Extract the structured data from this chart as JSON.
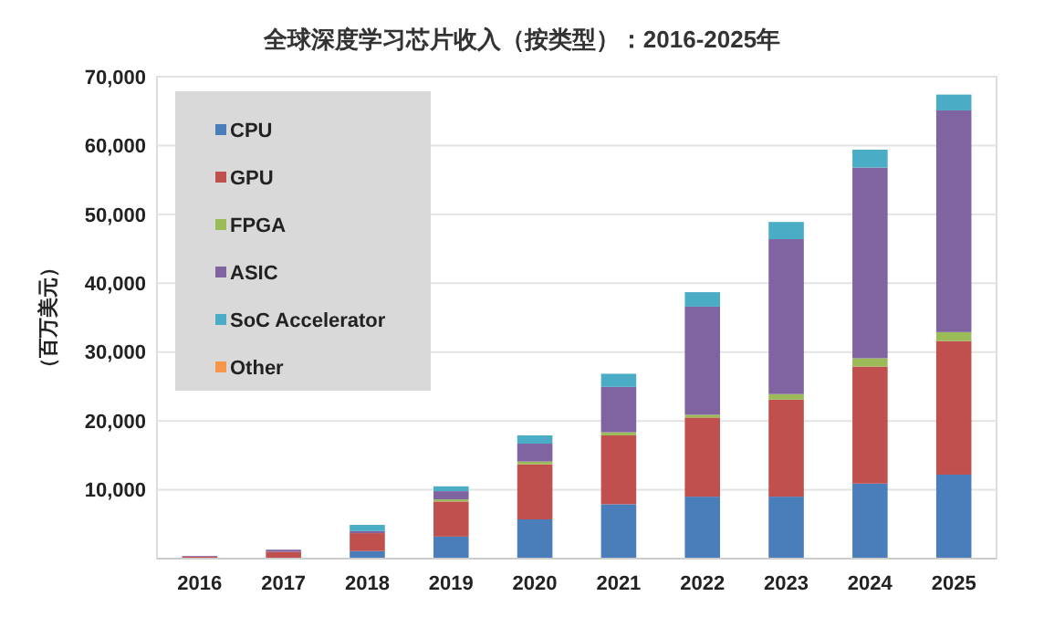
{
  "chart_data": {
    "type": "bar",
    "title": "全球深度学习芯片收入（按类型）：2016-2025年",
    "ylabel": "（百万美元）",
    "categories": [
      "2016",
      "2017",
      "2018",
      "2019",
      "2020",
      "2021",
      "2022",
      "2023",
      "2024",
      "2025"
    ],
    "stacked": true,
    "grid": "y",
    "legend": "top left",
    "ylim": [
      0,
      70000
    ],
    "yticks": [
      {
        "value": 10000,
        "label": "10,000"
      },
      {
        "value": 20000,
        "label": "20,000"
      },
      {
        "value": 30000,
        "label": "30,000"
      },
      {
        "value": 40000,
        "label": "40,000"
      },
      {
        "value": 50000,
        "label": "50,000"
      },
      {
        "value": 60000,
        "label": "60,000"
      },
      {
        "value": 70000,
        "label": "70,000"
      }
    ],
    "series": [
      {
        "name": "CPU",
        "color": "#4a7ebb",
        "values": [
          100,
          null,
          1100,
          3200,
          5700,
          7900,
          9000,
          9000,
          10900,
          12200
        ]
      },
      {
        "name": "GPU",
        "color": "#c0504d",
        "values": [
          200,
          1000,
          2600,
          5100,
          8000,
          10000,
          11500,
          14100,
          17000,
          19400
        ]
      },
      {
        "name": "FPGA",
        "color": "#9bbb59",
        "values": [
          0,
          0,
          0,
          300,
          400,
          450,
          400,
          800,
          1200,
          1300
        ]
      },
      {
        "name": "ASIC",
        "color": "#8064a2",
        "values": [
          100,
          300,
          300,
          1200,
          2600,
          6600,
          15700,
          22500,
          27700,
          32200
        ]
      },
      {
        "name": "SoC Accelerator",
        "color": "#4bacc6",
        "values": [
          0,
          0,
          900,
          700,
          1200,
          1900,
          2100,
          2500,
          2600,
          2300
        ]
      },
      {
        "name": "Other",
        "color": "#f79646",
        "values": [
          0,
          0,
          0,
          0,
          0,
          0,
          0,
          0,
          0,
          0
        ]
      }
    ]
  }
}
